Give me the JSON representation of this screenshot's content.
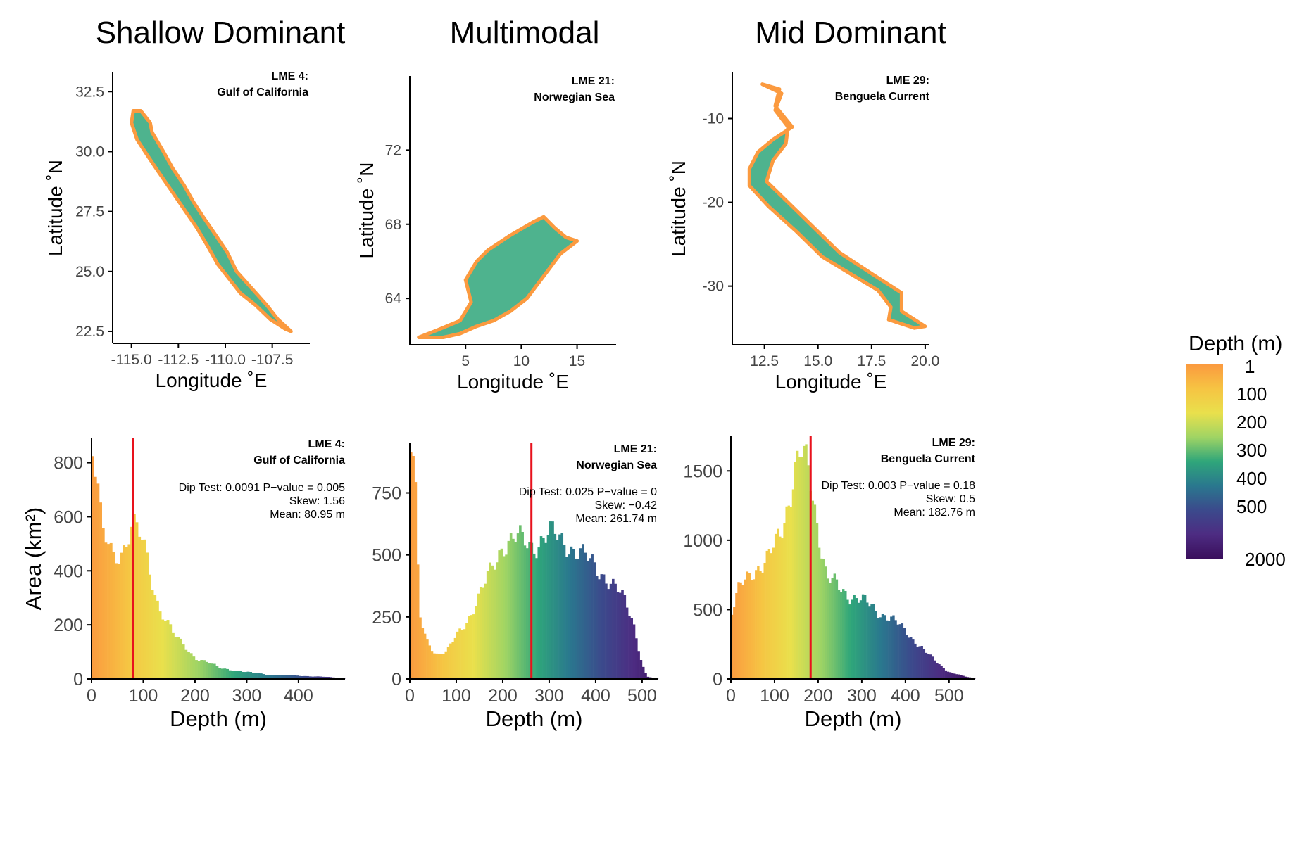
{
  "column_titles": [
    "Shallow Dominant",
    "Multimodal",
    "Mid Dominant"
  ],
  "legend": {
    "title": "Depth (m)",
    "labels": [
      "1",
      "100",
      "200",
      "300",
      "400",
      "500",
      "2000"
    ]
  },
  "colors": {
    "depth_ramp": [
      "#fb9a3f",
      "#f6c443",
      "#e9e04c",
      "#9fd464",
      "#2fa67a",
      "#2a788e",
      "#3b4a8c",
      "#4d2c82",
      "#3a0f5c"
    ],
    "mean_line": "#e8121d",
    "axis": "#000000"
  },
  "chart_data": [
    {
      "type": "map",
      "title": "LME 4:\nGulf of California",
      "xlabel": "Longitude ˚E",
      "ylabel": "Latitude ˚N",
      "xlim": [
        -116,
        -105.5
      ],
      "ylim": [
        22,
        33.3
      ],
      "xticks": [
        "-115.0",
        "-112.5",
        "-110.0",
        "-107.5"
      ],
      "xtick_values": [
        -115,
        -112.5,
        -110,
        -107.5
      ],
      "yticks": [
        "22.5",
        "25.0",
        "27.5",
        "30.0",
        "32.5"
      ],
      "ytick_values": [
        22.5,
        25,
        27.5,
        30,
        32.5
      ],
      "region_outline": [
        [
          -114.9,
          31.7
        ],
        [
          -114.5,
          31.7
        ],
        [
          -114.3,
          31.5
        ],
        [
          -114.0,
          31.2
        ],
        [
          -113.9,
          30.8
        ],
        [
          -113.6,
          30.4
        ],
        [
          -113.3,
          30.0
        ],
        [
          -112.8,
          29.3
        ],
        [
          -112.2,
          28.6
        ],
        [
          -111.7,
          27.9
        ],
        [
          -111.2,
          27.3
        ],
        [
          -110.5,
          26.5
        ],
        [
          -109.9,
          25.8
        ],
        [
          -109.4,
          25.0
        ],
        [
          -108.6,
          24.3
        ],
        [
          -107.8,
          23.6
        ],
        [
          -107.2,
          23.0
        ],
        [
          -106.5,
          22.5
        ],
        [
          -106.8,
          22.6
        ],
        [
          -107.6,
          23.0
        ],
        [
          -108.4,
          23.6
        ],
        [
          -109.2,
          24.1
        ],
        [
          -109.8,
          24.7
        ],
        [
          -110.4,
          25.3
        ],
        [
          -110.9,
          26.0
        ],
        [
          -111.5,
          26.8
        ],
        [
          -112.2,
          27.6
        ],
        [
          -112.9,
          28.4
        ],
        [
          -113.6,
          29.2
        ],
        [
          -114.2,
          29.9
        ],
        [
          -114.7,
          30.5
        ],
        [
          -115.0,
          31.2
        ]
      ]
    },
    {
      "type": "map",
      "title": "LME 21:\nNorwegian Sea",
      "xlabel": "Longitude ˚E",
      "ylabel": "Latitude ˚N",
      "xlim": [
        0,
        18.5
      ],
      "ylim": [
        61.5,
        76
      ],
      "xticks": [
        "5",
        "10",
        "15"
      ],
      "xtick_values": [
        5,
        10,
        15
      ],
      "yticks": [
        "64",
        "68",
        "72"
      ],
      "ytick_values": [
        64,
        68,
        72
      ],
      "region_outline": [
        [
          0.8,
          61.9
        ],
        [
          2.5,
          62.3
        ],
        [
          4.5,
          62.8
        ],
        [
          5.5,
          63.8
        ],
        [
          5.0,
          65.0
        ],
        [
          6.0,
          66.0
        ],
        [
          7.0,
          66.6
        ],
        [
          9.0,
          67.4
        ],
        [
          11.0,
          68.1
        ],
        [
          12.0,
          68.4
        ],
        [
          13.0,
          67.8
        ],
        [
          14.0,
          67.3
        ],
        [
          15.0,
          67.1
        ],
        [
          13.5,
          66.4
        ],
        [
          12.5,
          65.6
        ],
        [
          11.5,
          64.8
        ],
        [
          10.5,
          64.0
        ],
        [
          9.0,
          63.3
        ],
        [
          7.5,
          62.8
        ],
        [
          6.0,
          62.5
        ],
        [
          4.5,
          62.1
        ],
        [
          3.0,
          61.9
        ]
      ]
    },
    {
      "type": "map",
      "title": "LME 29:\nBenguela Current",
      "xlabel": "Longitude ˚E",
      "ylabel": "Latitude ˚N",
      "xlim": [
        11,
        20.2
      ],
      "ylim": [
        -37,
        -4.5
      ],
      "xticks": [
        "12.5",
        "15.0",
        "17.5",
        "20.0"
      ],
      "xtick_values": [
        12.5,
        15,
        17.5,
        20
      ],
      "yticks": [
        "-30",
        "-20",
        "-10"
      ],
      "ytick_values": [
        -30,
        -20,
        -10
      ],
      "region_outline": [
        [
          12.4,
          -5.9
        ],
        [
          13.2,
          -6.5
        ],
        [
          13.0,
          -8.5
        ],
        [
          13.8,
          -11.0
        ],
        [
          12.9,
          -12.5
        ],
        [
          12.2,
          -14.0
        ],
        [
          11.8,
          -16.0
        ],
        [
          11.8,
          -18.0
        ],
        [
          12.7,
          -20.5
        ],
        [
          14.0,
          -23.5
        ],
        [
          15.2,
          -26.5
        ],
        [
          16.5,
          -28.5
        ],
        [
          17.8,
          -30.5
        ],
        [
          18.4,
          -32.5
        ],
        [
          18.3,
          -34.0
        ],
        [
          19.5,
          -35.0
        ],
        [
          20.0,
          -34.8
        ],
        [
          18.9,
          -33.0
        ],
        [
          18.9,
          -30.8
        ],
        [
          17.5,
          -28.5
        ],
        [
          16.0,
          -26.0
        ],
        [
          14.8,
          -23.0
        ],
        [
          13.8,
          -20.5
        ],
        [
          12.6,
          -17.5
        ],
        [
          12.9,
          -15.0
        ],
        [
          13.5,
          -13.0
        ],
        [
          13.6,
          -11.0
        ],
        [
          13.0,
          -9.0
        ],
        [
          13.3,
          -7.0
        ]
      ]
    },
    {
      "type": "bar",
      "title": "LME 4:\nGulf of California",
      "stats": [
        "Dip Test: 0.0091 P−value = 0.005",
        "Skew: 1.56",
        "Mean: 80.95 m"
      ],
      "xlabel": "Depth (m)",
      "ylabel": "Area (km²)",
      "xlim": [
        0,
        490
      ],
      "ylim": [
        0,
        890
      ],
      "xticks": [
        "0",
        "100",
        "200",
        "300",
        "400"
      ],
      "xtick_values": [
        0,
        100,
        200,
        300,
        400
      ],
      "yticks": [
        "0",
        "200",
        "400",
        "600",
        "800"
      ],
      "ytick_values": [
        0,
        200,
        400,
        600,
        800
      ],
      "mean": 80.95,
      "bin_width": 5,
      "x": [
        0,
        20,
        40,
        60,
        80,
        100,
        130,
        160,
        200,
        250,
        300,
        350,
        400,
        450,
        490
      ],
      "values": [
        890,
        540,
        470,
        480,
        560,
        500,
        270,
        160,
        80,
        40,
        25,
        15,
        12,
        8,
        3
      ]
    },
    {
      "type": "bar",
      "title": "LME 21:\nNorwegian Sea",
      "stats": [
        "Dip Test: 0.025 P−value = 0",
        "Skew: −0.42",
        "Mean: 261.74 m"
      ],
      "xlabel": "Depth (m)",
      "ylabel": "",
      "xlim": [
        0,
        535
      ],
      "ylim": [
        0,
        950
      ],
      "xticks": [
        "0",
        "100",
        "200",
        "300",
        "400",
        "500"
      ],
      "xtick_values": [
        0,
        100,
        200,
        300,
        400,
        500
      ],
      "yticks": [
        "0",
        "250",
        "500",
        "750"
      ],
      "ytick_values": [
        0,
        250,
        500,
        750
      ],
      "mean": 261.74,
      "bin_width": 5,
      "x": [
        0,
        10,
        20,
        40,
        60,
        80,
        100,
        130,
        160,
        200,
        230,
        260,
        300,
        340,
        380,
        420,
        460,
        480,
        500,
        510,
        535
      ],
      "values": [
        950,
        900,
        250,
        140,
        100,
        110,
        170,
        260,
        370,
        550,
        560,
        540,
        580,
        550,
        480,
        420,
        320,
        240,
        60,
        10,
        0
      ]
    },
    {
      "type": "bar",
      "title": "LME 29:\nBenguela Current",
      "stats": [
        "Dip Test: 0.003 P−value = 0.18",
        "Skew: 0.5",
        "Mean: 182.76 m"
      ],
      "xlabel": "Depth (m)",
      "ylabel": "",
      "xlim": [
        0,
        560
      ],
      "ylim": [
        0,
        1750
      ],
      "xticks": [
        "0",
        "100",
        "200",
        "300",
        "400",
        "500"
      ],
      "xtick_values": [
        0,
        100,
        200,
        300,
        400,
        500
      ],
      "yticks": [
        "0",
        "500",
        "1000",
        "1500"
      ],
      "ytick_values": [
        0,
        500,
        1000,
        1500
      ],
      "mean": 182.76,
      "bin_width": 5,
      "x": [
        0,
        20,
        50,
        80,
        100,
        120,
        140,
        160,
        180,
        200,
        220,
        250,
        300,
        350,
        400,
        450,
        500,
        540,
        560
      ],
      "values": [
        450,
        650,
        800,
        820,
        950,
        1150,
        1400,
        1600,
        1500,
        1100,
        720,
        650,
        560,
        470,
        350,
        180,
        50,
        15,
        5
      ]
    }
  ]
}
